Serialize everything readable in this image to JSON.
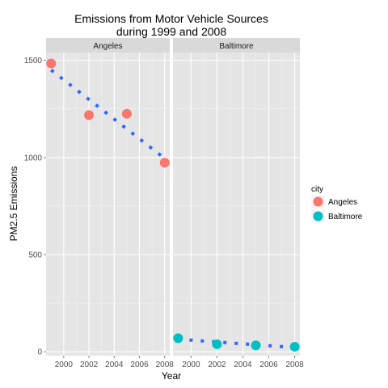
{
  "chart_data": {
    "type": "scatter",
    "title_lines": [
      "Emissions from Motor Vehicle Sources",
      "during 1999 and 2008"
    ],
    "xlabel": "Year",
    "ylabel": "PM2.5 Emissions",
    "xlim": [
      1998.6,
      2008.4
    ],
    "ylim": [
      -20,
      1540
    ],
    "x_ticks": [
      2000,
      2002,
      2004,
      2006,
      2008
    ],
    "x_tick_labels": [
      "2000",
      "2002",
      "2004",
      "2006",
      "2008"
    ],
    "y_ticks": [
      0,
      500,
      1000,
      1500
    ],
    "y_tick_labels": [
      "0",
      "500",
      "1000",
      "1500"
    ],
    "grid": true,
    "legend": {
      "title": "city",
      "position": "right",
      "entries": [
        {
          "label": "Angeles",
          "color": "#F8766D"
        },
        {
          "label": "Baltimore",
          "color": "#00BFC4"
        }
      ]
    },
    "trend_color": "#3366FF",
    "panels": [
      {
        "strip": "Angeles",
        "color": "#F8766D",
        "points": [
          {
            "x": 1999,
            "y": 1484
          },
          {
            "x": 2002,
            "y": 1218
          },
          {
            "x": 2005,
            "y": 1225
          },
          {
            "x": 2008,
            "y": 973
          }
        ],
        "trend": [
          {
            "x": 1999,
            "y": 1450
          },
          {
            "x": 2008,
            "y": 995
          }
        ]
      },
      {
        "strip": "Baltimore",
        "color": "#00BFC4",
        "points": [
          {
            "x": 1999,
            "y": 70
          },
          {
            "x": 2002,
            "y": 39
          },
          {
            "x": 2005,
            "y": 33
          },
          {
            "x": 2008,
            "y": 26
          }
        ],
        "trend": [
          {
            "x": 1999,
            "y": 65
          },
          {
            "x": 2008,
            "y": 22
          }
        ]
      }
    ]
  }
}
